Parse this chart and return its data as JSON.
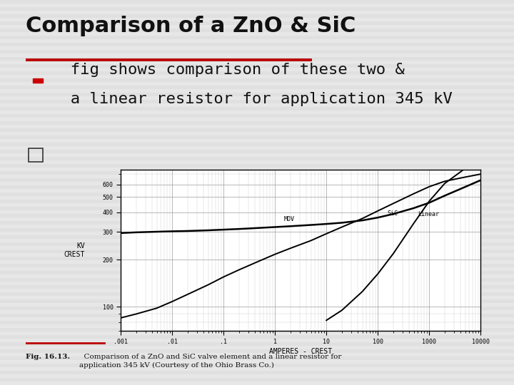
{
  "title": "Comparison of a ZnO & SiC",
  "title_fontsize": 22,
  "title_font": "sans-serif",
  "title_color": "#111111",
  "slide_bg": "#e0e0e0",
  "stripe_color": "#cccccc",
  "red_bar_color": "#bb0000",
  "bullet1_line1": "  fig shows comparison of these two &",
  "bullet1_line2": "  a linear resistor for application 345 kV",
  "bullet_fontsize": 16,
  "bullet_font": "monospace",
  "caption_bold": "Fig. 16.13.",
  "caption_rest": "  Comparison of a ZnO and SiC valve element and a linear resistor for\napplication 345 kV (Courtesy of the Ohio Brass Co.)",
  "caption_fontsize": 7.5,
  "chart_ylabel": "KV\nCREST",
  "chart_xlabel": "AMPERES - CREST",
  "chart_yticks": [
    100,
    200,
    300,
    400,
    500,
    600
  ],
  "chart_ytick_labels": [
    "100",
    "200",
    "300",
    "400",
    "500",
    "600"
  ],
  "chart_xtick_labels": [
    ".001",
    ".01",
    ".1",
    "1",
    "10",
    "100",
    "1000",
    "10000"
  ],
  "chart_xtick_vals": [
    0.001,
    0.01,
    0.1,
    1,
    10,
    100,
    1000,
    10000
  ],
  "mov_label": "MOV",
  "sic_label": "SiC",
  "linear_label": "Linear",
  "line_color": "#000000",
  "grid_color": "#999999",
  "mov_x": [
    0.001,
    0.002,
    0.004,
    0.008,
    0.02,
    0.05,
    0.1,
    0.2,
    0.5,
    1,
    2,
    5,
    10,
    20,
    50,
    100,
    200,
    500,
    1000,
    2000,
    5000,
    10000
  ],
  "mov_y": [
    295,
    298,
    300,
    302,
    304,
    307,
    310,
    313,
    318,
    322,
    326,
    332,
    337,
    343,
    355,
    370,
    390,
    425,
    460,
    510,
    580,
    640
  ],
  "sic_x": [
    0.001,
    0.002,
    0.005,
    0.01,
    0.02,
    0.05,
    0.1,
    0.2,
    0.5,
    1,
    2,
    5,
    10,
    20,
    50,
    100,
    200,
    500,
    1000,
    2000,
    5000,
    10000
  ],
  "sic_y": [
    85,
    90,
    98,
    108,
    120,
    138,
    155,
    172,
    196,
    216,
    236,
    264,
    292,
    322,
    365,
    408,
    455,
    525,
    582,
    630,
    670,
    700
  ],
  "linear_x": [
    10,
    20,
    50,
    100,
    200,
    500,
    1000,
    2000,
    5000,
    10000
  ],
  "linear_y": [
    82,
    95,
    125,
    162,
    218,
    340,
    470,
    610,
    760,
    880
  ]
}
